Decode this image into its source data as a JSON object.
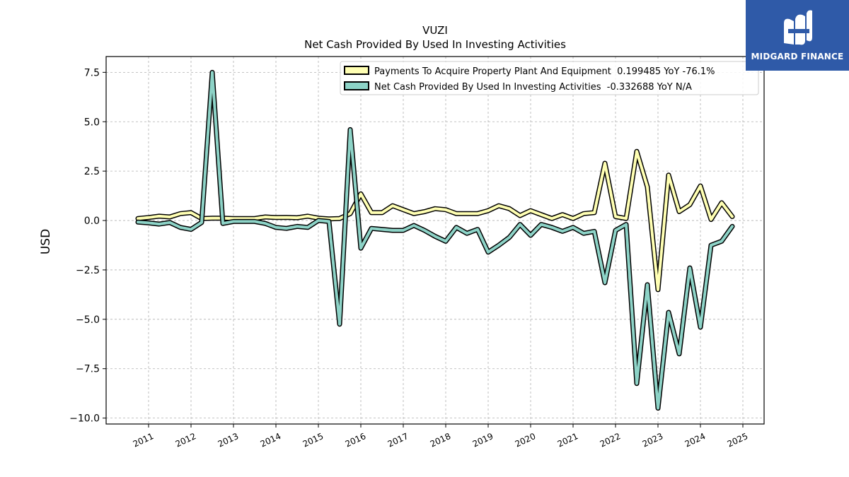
{
  "chart_data": {
    "type": "line",
    "title": "VUZI",
    "subtitle": "Net Cash Provided By Used In Investing Activities",
    "ylabel": "USD",
    "xlabel": "",
    "ylim": [
      -10.3,
      8.3
    ],
    "xlim": [
      2010.0,
      2025.5
    ],
    "yticks": [
      7.5,
      5.0,
      2.5,
      0.0,
      -2.5,
      -5.0,
      -7.5,
      -10.0
    ],
    "ytick_labels": [
      "7.5",
      "5.0",
      "2.5",
      "0.0",
      "−2.5",
      "−5.0",
      "−7.5",
      "−10.0"
    ],
    "xticks": [
      2011,
      2012,
      2013,
      2014,
      2015,
      2016,
      2017,
      2018,
      2019,
      2020,
      2021,
      2022,
      2023,
      2024,
      2025
    ],
    "xtick_labels": [
      "2011",
      "2012",
      "2013",
      "2014",
      "2015",
      "2016",
      "2017",
      "2018",
      "2019",
      "2020",
      "2021",
      "2022",
      "2023",
      "2024",
      "2025"
    ],
    "grid": true,
    "legend_position": "top-right",
    "series": [
      {
        "name": "Payments To Acquire Property Plant And Equipment",
        "legend_label": "Payments To Acquire Property Plant And Equipment  0.199485 YoY -76.1%",
        "color": "#ffffb3",
        "points": [
          [
            2010.75,
            0.1
          ],
          [
            2011.0,
            0.15
          ],
          [
            2011.25,
            0.22
          ],
          [
            2011.5,
            0.18
          ],
          [
            2011.75,
            0.35
          ],
          [
            2012.0,
            0.4
          ],
          [
            2012.25,
            0.1
          ],
          [
            2012.5,
            0.12
          ],
          [
            2012.75,
            0.12
          ],
          [
            2013.0,
            0.1
          ],
          [
            2013.25,
            0.1
          ],
          [
            2013.5,
            0.1
          ],
          [
            2013.75,
            0.18
          ],
          [
            2014.0,
            0.15
          ],
          [
            2014.25,
            0.16
          ],
          [
            2014.5,
            0.14
          ],
          [
            2014.75,
            0.22
          ],
          [
            2015.0,
            0.12
          ],
          [
            2015.25,
            0.08
          ],
          [
            2015.5,
            0.1
          ],
          [
            2015.75,
            0.35
          ],
          [
            2016.0,
            1.35
          ],
          [
            2016.25,
            0.4
          ],
          [
            2016.5,
            0.4
          ],
          [
            2016.75,
            0.75
          ],
          [
            2017.0,
            0.55
          ],
          [
            2017.25,
            0.35
          ],
          [
            2017.5,
            0.45
          ],
          [
            2017.75,
            0.6
          ],
          [
            2018.0,
            0.55
          ],
          [
            2018.25,
            0.35
          ],
          [
            2018.5,
            0.35
          ],
          [
            2018.75,
            0.35
          ],
          [
            2019.0,
            0.5
          ],
          [
            2019.25,
            0.75
          ],
          [
            2019.5,
            0.6
          ],
          [
            2019.75,
            0.25
          ],
          [
            2020.0,
            0.5
          ],
          [
            2020.25,
            0.3
          ],
          [
            2020.5,
            0.1
          ],
          [
            2020.75,
            0.3
          ],
          [
            2021.0,
            0.1
          ],
          [
            2021.25,
            0.35
          ],
          [
            2021.5,
            0.4
          ],
          [
            2021.75,
            2.9
          ],
          [
            2022.0,
            0.2
          ],
          [
            2022.25,
            0.1
          ],
          [
            2022.5,
            3.5
          ],
          [
            2022.75,
            1.7
          ],
          [
            2023.0,
            -3.5
          ],
          [
            2023.25,
            2.3
          ],
          [
            2023.5,
            0.45
          ],
          [
            2023.75,
            0.8
          ],
          [
            2024.0,
            1.75
          ],
          [
            2024.25,
            0.05
          ],
          [
            2024.5,
            0.9
          ],
          [
            2024.75,
            0.2
          ]
        ]
      },
      {
        "name": "Net Cash Provided By Used In Investing Activities",
        "legend_label": "Net Cash Provided By Used In Investing Activities  -0.332688 YoY N/A",
        "color": "#8dd3c7",
        "points": [
          [
            2010.75,
            -0.08
          ],
          [
            2011.0,
            -0.12
          ],
          [
            2011.25,
            -0.18
          ],
          [
            2011.5,
            -0.1
          ],
          [
            2011.75,
            -0.35
          ],
          [
            2012.0,
            -0.45
          ],
          [
            2012.25,
            -0.1
          ],
          [
            2012.5,
            7.5
          ],
          [
            2012.75,
            -0.15
          ],
          [
            2013.0,
            -0.05
          ],
          [
            2013.25,
            -0.05
          ],
          [
            2013.5,
            -0.05
          ],
          [
            2013.75,
            -0.15
          ],
          [
            2014.0,
            -0.35
          ],
          [
            2014.25,
            -0.4
          ],
          [
            2014.5,
            -0.3
          ],
          [
            2014.75,
            -0.35
          ],
          [
            2015.0,
            0.0
          ],
          [
            2015.25,
            -0.05
          ],
          [
            2015.5,
            -5.25
          ],
          [
            2015.75,
            4.6
          ],
          [
            2016.0,
            -1.4
          ],
          [
            2016.25,
            -0.4
          ],
          [
            2016.5,
            -0.45
          ],
          [
            2016.75,
            -0.5
          ],
          [
            2017.0,
            -0.5
          ],
          [
            2017.25,
            -0.25
          ],
          [
            2017.5,
            -0.5
          ],
          [
            2017.75,
            -0.8
          ],
          [
            2018.0,
            -1.05
          ],
          [
            2018.25,
            -0.35
          ],
          [
            2018.5,
            -0.65
          ],
          [
            2018.75,
            -0.45
          ],
          [
            2019.0,
            -1.6
          ],
          [
            2019.25,
            -1.25
          ],
          [
            2019.5,
            -0.85
          ],
          [
            2019.75,
            -0.2
          ],
          [
            2020.0,
            -0.75
          ],
          [
            2020.25,
            -0.2
          ],
          [
            2020.5,
            -0.35
          ],
          [
            2020.75,
            -0.55
          ],
          [
            2021.0,
            -0.35
          ],
          [
            2021.25,
            -0.65
          ],
          [
            2021.5,
            -0.55
          ],
          [
            2021.75,
            -3.15
          ],
          [
            2022.0,
            -0.5
          ],
          [
            2022.25,
            -0.2
          ],
          [
            2022.5,
            -8.25
          ],
          [
            2022.75,
            -3.25
          ],
          [
            2023.0,
            -9.5
          ],
          [
            2023.25,
            -4.65
          ],
          [
            2023.5,
            -6.75
          ],
          [
            2023.75,
            -2.4
          ],
          [
            2024.0,
            -5.4
          ],
          [
            2024.25,
            -1.25
          ],
          [
            2024.5,
            -1.05
          ],
          [
            2024.75,
            -0.3
          ]
        ]
      }
    ]
  },
  "logo": {
    "text": "MIDGARD FINANCE",
    "icon": "midgard-logo-icon",
    "background": "#2f5aa8"
  }
}
